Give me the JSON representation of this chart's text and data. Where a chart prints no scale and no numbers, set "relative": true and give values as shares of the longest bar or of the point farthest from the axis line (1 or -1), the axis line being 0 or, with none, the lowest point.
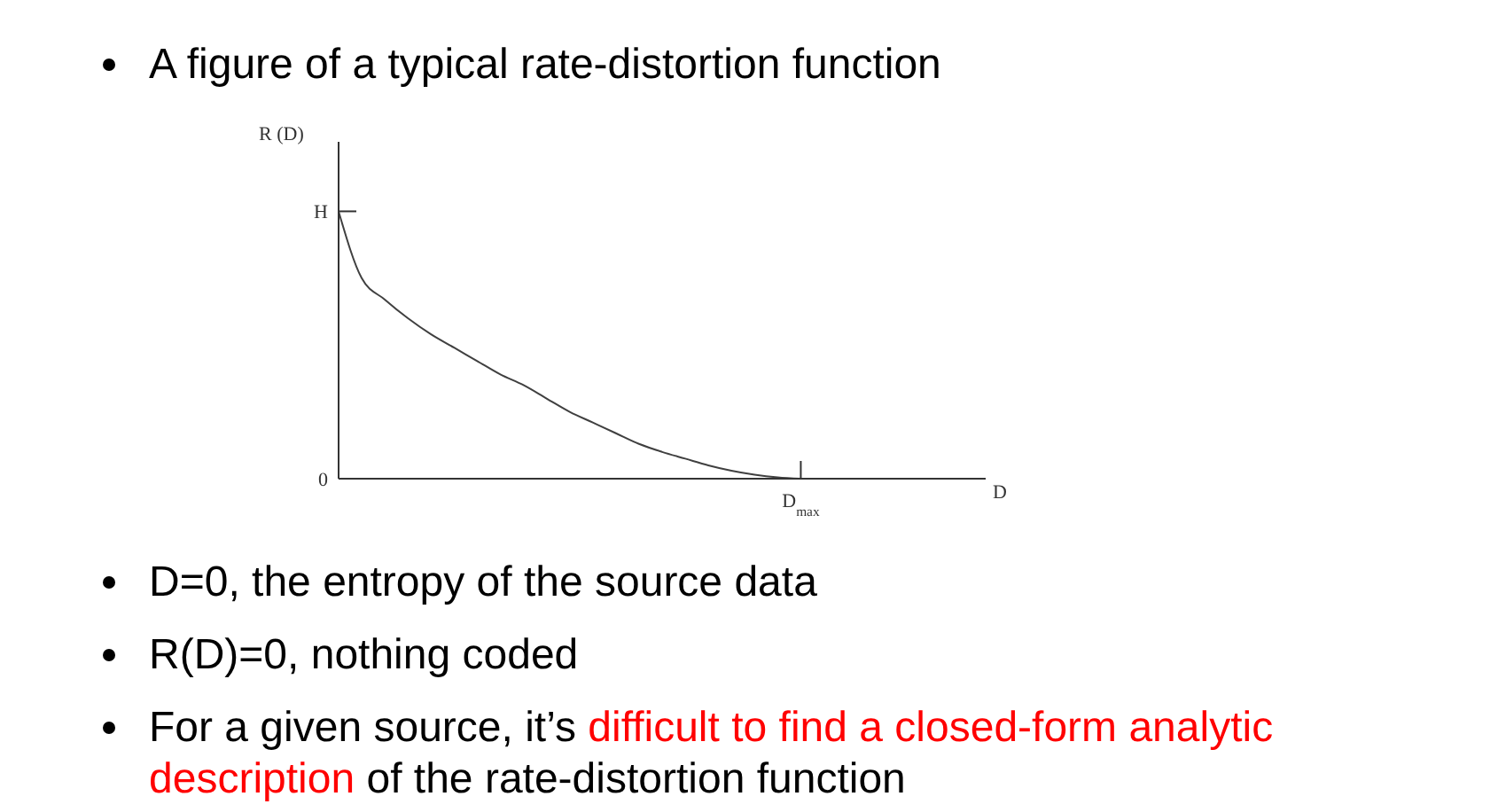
{
  "chart_data": {
    "type": "line",
    "title": "A figure of a typical rate-distortion function",
    "xlabel": "D",
    "ylabel": "R (D)",
    "relative": true,
    "categories": [
      null,
      null,
      null,
      null,
      null,
      null,
      null,
      null,
      null,
      null,
      null,
      null,
      null,
      null,
      null,
      null,
      null,
      null,
      null,
      null,
      null,
      null,
      null,
      null,
      null,
      null,
      null,
      null,
      null
    ],
    "series": [
      {
        "color": "#404040",
        "values": [
          1,
          0.75,
          0.67,
          0.6,
          0.54,
          0.49,
          0.44,
          0.39,
          0.35,
          0.3,
          0.25,
          0.21,
          0.17,
          0.13,
          0.1,
          0.075,
          0.05,
          0.03,
          0.015,
          0.005,
          0,
          null,
          null,
          null,
          null,
          null,
          null,
          null,
          null
        ]
      }
    ],
    "annotations": [
      "H",
      "0",
      "D$_{max}$",
      "D=0, the entropy of the source data",
      "R(D)=0, nothing coded",
      "For a given source, it’s ",
      "difficult to find a closed-form analytic description",
      " of the rate-distortion function"
    ]
  }
}
